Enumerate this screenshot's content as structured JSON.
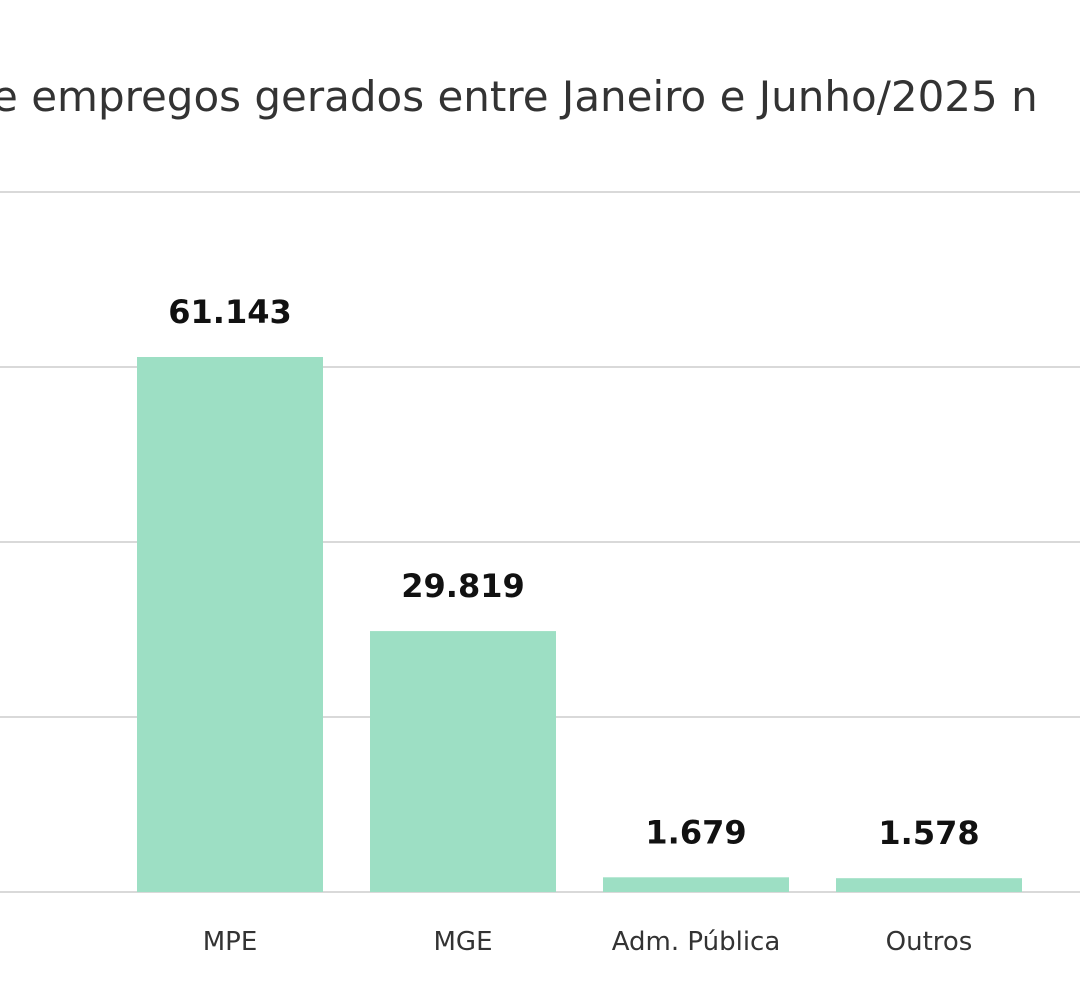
{
  "chart_data": {
    "type": "bar",
    "title": "e empregos gerados entre Janeiro e Junho/2025 n",
    "categories": [
      "MPE",
      "MGE",
      "Adm. Pública",
      "Outros"
    ],
    "values": [
      61143,
      29819,
      1679,
      1578
    ],
    "value_labels": [
      "61.143",
      "29.819",
      "1.679",
      "1.578"
    ],
    "ylim": [
      0,
      80000
    ],
    "grid": true,
    "legend": "none",
    "bar_color": "#9ddfc4",
    "grid_color": "#d9d9d9"
  }
}
